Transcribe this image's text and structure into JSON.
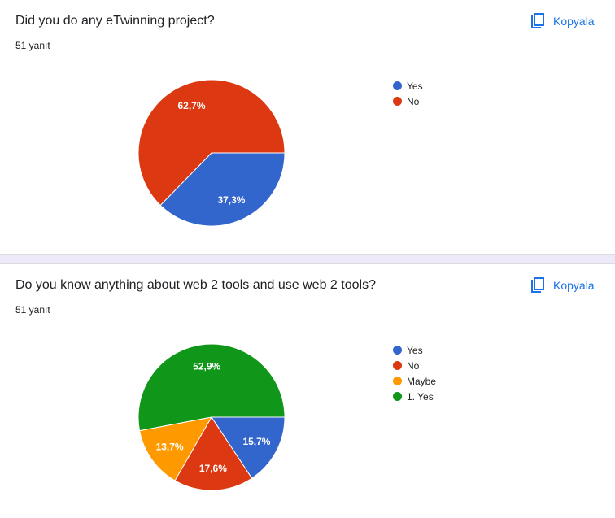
{
  "copy_label": "Kopyala",
  "questions": [
    {
      "title": "Did you do any eTwinning project?",
      "responses": "51 yanıt",
      "chart_data": {
        "type": "pie",
        "labels": [
          "Yes",
          "No"
        ],
        "values": [
          37.3,
          62.7
        ],
        "value_labels": [
          "37,3%",
          "62,7%"
        ],
        "colors": [
          "#3366cc",
          "#dc3912"
        ],
        "legend": "right"
      }
    },
    {
      "title": "Do you know anything about web 2 tools and use web 2 tools?",
      "responses": "51 yanıt",
      "chart_data": {
        "type": "pie",
        "labels": [
          "Yes",
          "No",
          "Maybe",
          "1. Yes"
        ],
        "values": [
          15.7,
          17.6,
          13.7,
          52.9
        ],
        "value_labels": [
          "15,7%",
          "17,6%",
          "13,7%",
          "52,9%"
        ],
        "colors": [
          "#3366cc",
          "#dc3912",
          "#ff9900",
          "#109618"
        ],
        "legend": "right"
      }
    }
  ]
}
